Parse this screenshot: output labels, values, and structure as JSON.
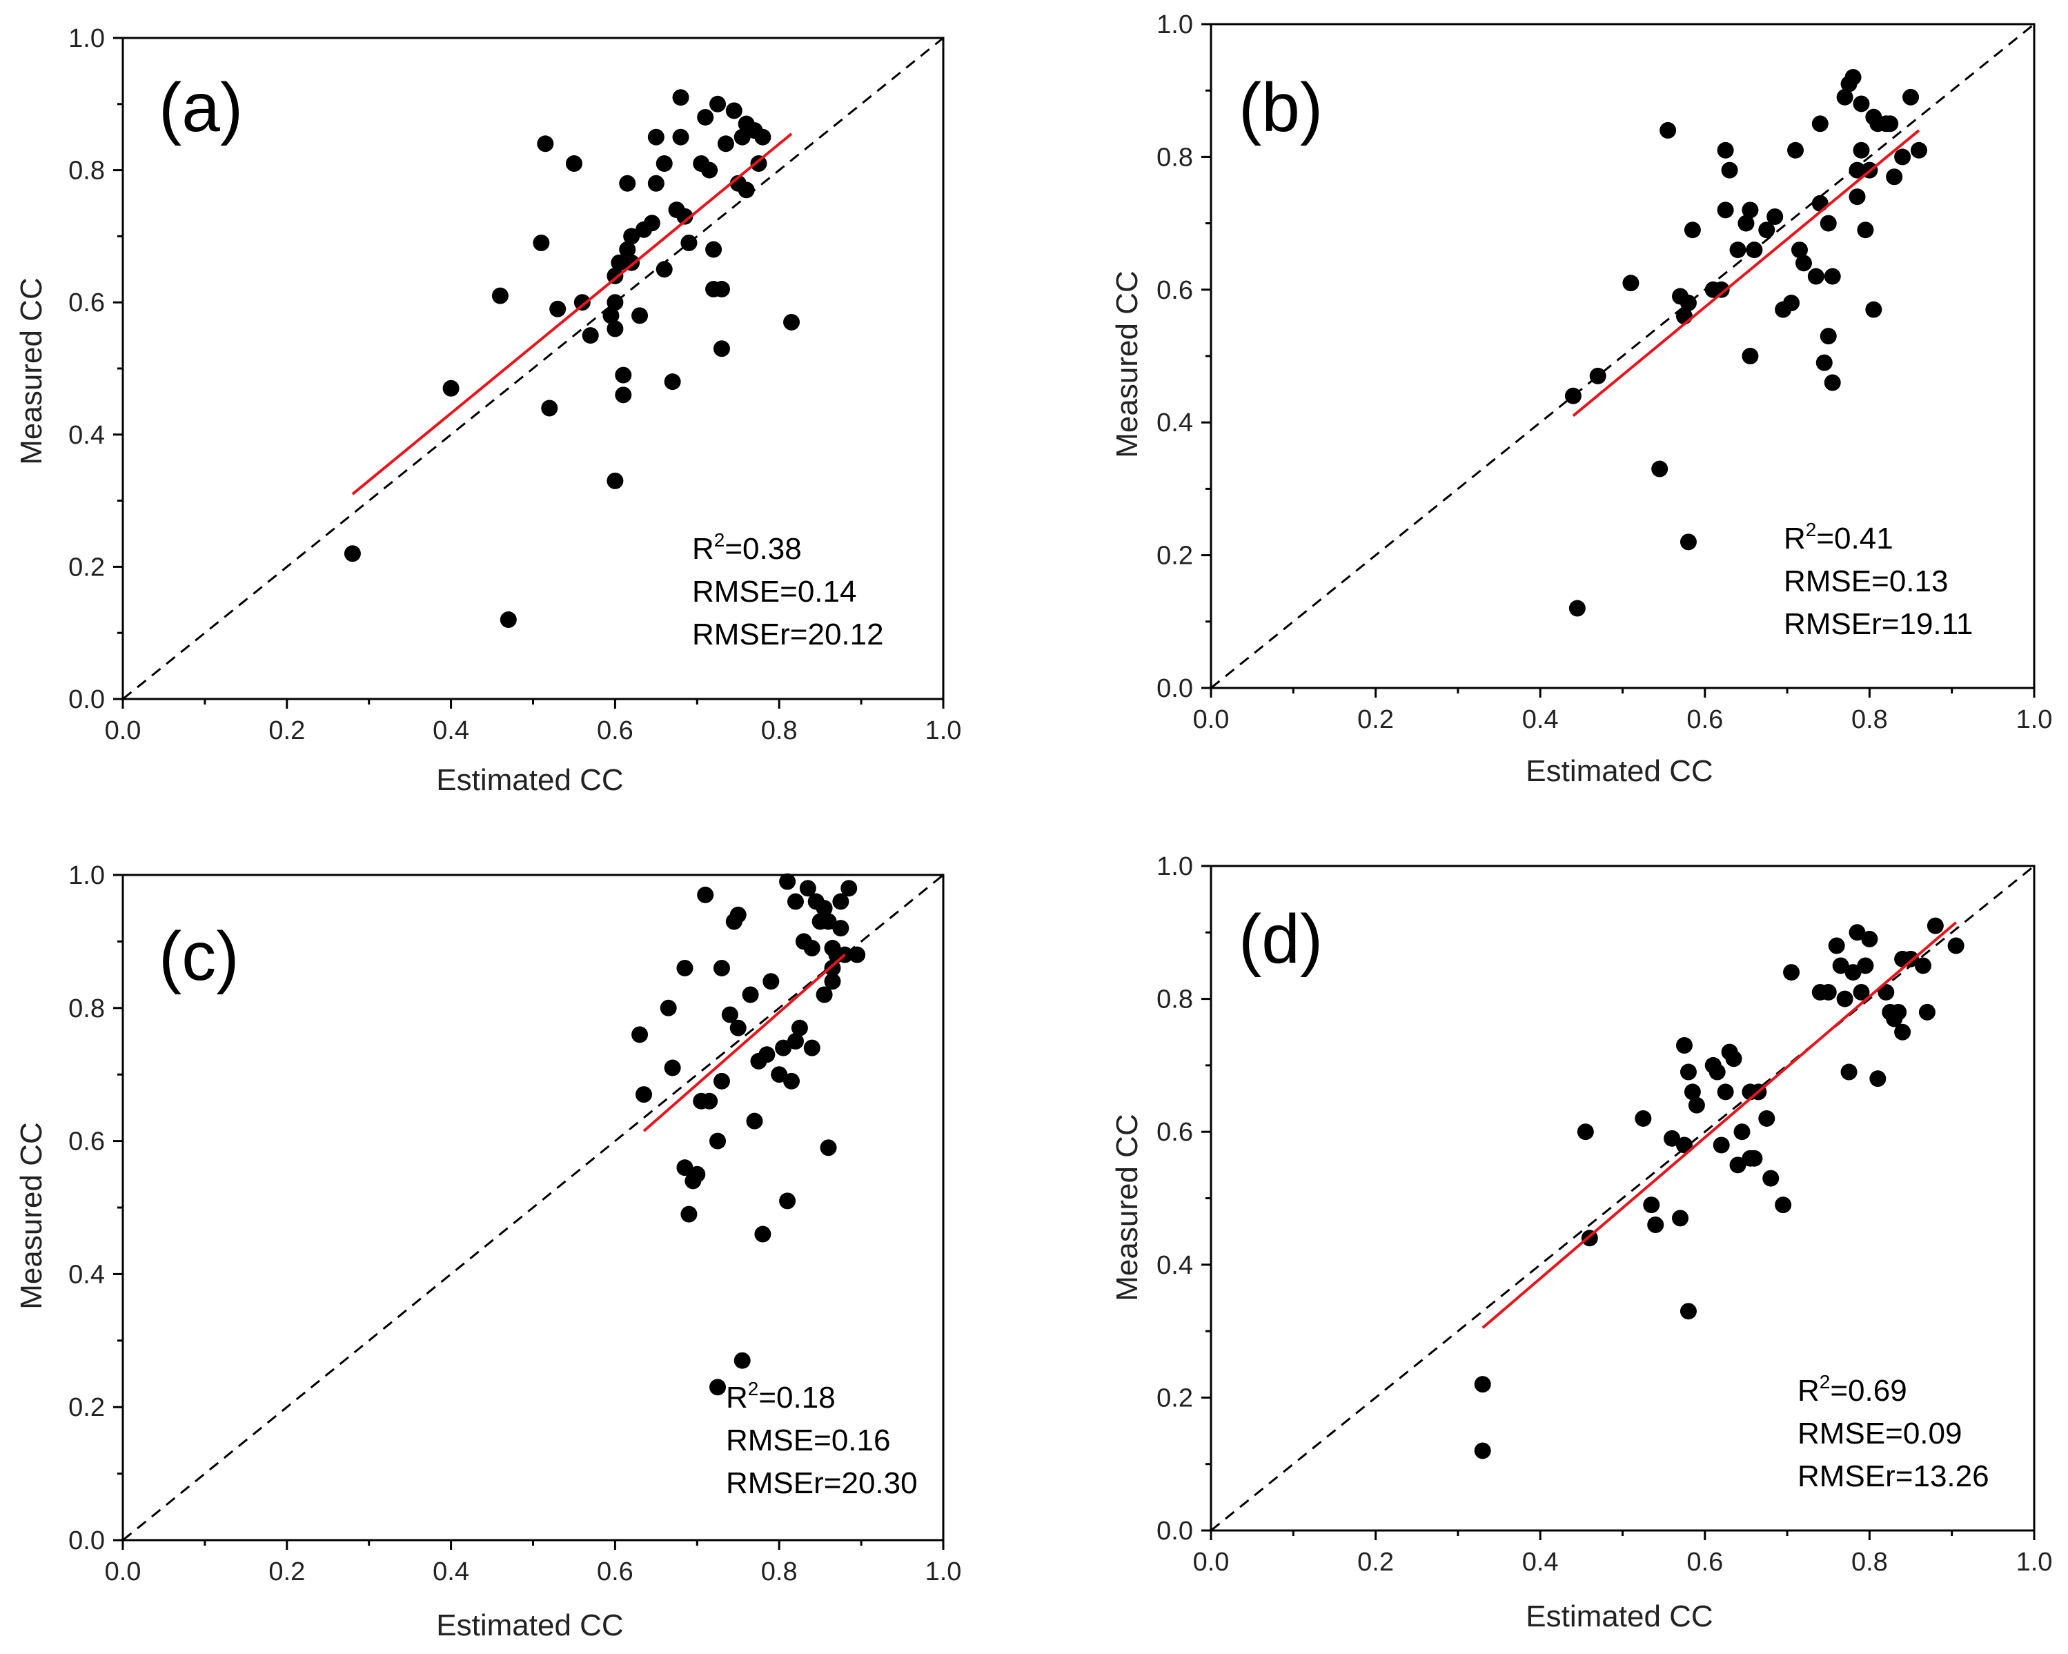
{
  "chart_data": [
    {
      "type": "scatter",
      "panel_label": "(a)",
      "xlabel": "Estimated CC",
      "ylabel": "Measured CC",
      "xlim": [
        0.0,
        1.0
      ],
      "ylim": [
        0.0,
        1.0
      ],
      "xticks": [
        "0.0",
        "0.2",
        "0.4",
        "0.6",
        "0.8",
        "1.0"
      ],
      "yticks": [
        "0.0",
        "0.2",
        "0.4",
        "0.6",
        "0.8",
        "1.0"
      ],
      "one_to_one_line": {
        "x": [
          0.0,
          1.0
        ],
        "y": [
          0.0,
          1.0
        ]
      },
      "fit_line": {
        "x": [
          0.28,
          0.815
        ],
        "y": [
          0.31,
          0.855
        ],
        "color": "#e8141b"
      },
      "stats": {
        "r2_label": "R",
        "r2_sup": "2",
        "r2_value": "=0.38",
        "rmse": "RMSE=0.14",
        "rmser": "RMSEr=20.12"
      },
      "points": [
        [
          0.28,
          0.22
        ],
        [
          0.47,
          0.12
        ],
        [
          0.4,
          0.47
        ],
        [
          0.46,
          0.61
        ],
        [
          0.51,
          0.69
        ],
        [
          0.515,
          0.84
        ],
        [
          0.52,
          0.44
        ],
        [
          0.53,
          0.59
        ],
        [
          0.55,
          0.81
        ],
        [
          0.56,
          0.6
        ],
        [
          0.57,
          0.55
        ],
        [
          0.595,
          0.58
        ],
        [
          0.6,
          0.56
        ],
        [
          0.6,
          0.6
        ],
        [
          0.6,
          0.33
        ],
        [
          0.6,
          0.64
        ],
        [
          0.605,
          0.66
        ],
        [
          0.61,
          0.49
        ],
        [
          0.61,
          0.46
        ],
        [
          0.615,
          0.68
        ],
        [
          0.615,
          0.78
        ],
        [
          0.62,
          0.7
        ],
        [
          0.62,
          0.66
        ],
        [
          0.63,
          0.58
        ],
        [
          0.635,
          0.71
        ],
        [
          0.645,
          0.72
        ],
        [
          0.65,
          0.78
        ],
        [
          0.65,
          0.85
        ],
        [
          0.66,
          0.81
        ],
        [
          0.66,
          0.65
        ],
        [
          0.67,
          0.48
        ],
        [
          0.675,
          0.74
        ],
        [
          0.68,
          0.91
        ],
        [
          0.68,
          0.85
        ],
        [
          0.685,
          0.73
        ],
        [
          0.69,
          0.69
        ],
        [
          0.705,
          0.81
        ],
        [
          0.71,
          0.88
        ],
        [
          0.715,
          0.8
        ],
        [
          0.72,
          0.68
        ],
        [
          0.72,
          0.62
        ],
        [
          0.725,
          0.9
        ],
        [
          0.73,
          0.62
        ],
        [
          0.73,
          0.53
        ],
        [
          0.735,
          0.84
        ],
        [
          0.745,
          0.89
        ],
        [
          0.75,
          0.78
        ],
        [
          0.755,
          0.85
        ],
        [
          0.76,
          0.87
        ],
        [
          0.76,
          0.77
        ],
        [
          0.77,
          0.86
        ],
        [
          0.775,
          0.81
        ],
        [
          0.78,
          0.85
        ],
        [
          0.815,
          0.57
        ]
      ]
    },
    {
      "type": "scatter",
      "panel_label": "(b)",
      "xlabel": "Estimated CC",
      "ylabel": "Measured CC",
      "xlim": [
        0.0,
        1.0
      ],
      "ylim": [
        0.0,
        1.0
      ],
      "xticks": [
        "0.0",
        "0.2",
        "0.4",
        "0.6",
        "0.8",
        "1.0"
      ],
      "yticks": [
        "0.0",
        "0.2",
        "0.4",
        "0.6",
        "0.8",
        "1.0"
      ],
      "one_to_one_line": {
        "x": [
          0.0,
          1.0
        ],
        "y": [
          0.0,
          1.0
        ]
      },
      "fit_line": {
        "x": [
          0.44,
          0.86
        ],
        "y": [
          0.41,
          0.84
        ],
        "color": "#e8141b"
      },
      "stats": {
        "r2_label": "R",
        "r2_sup": "2",
        "r2_value": "=0.41",
        "rmse": "RMSE=0.13",
        "rmser": "RMSEr=19.11"
      },
      "points": [
        [
          0.44,
          0.44
        ],
        [
          0.445,
          0.12
        ],
        [
          0.47,
          0.47
        ],
        [
          0.51,
          0.61
        ],
        [
          0.545,
          0.33
        ],
        [
          0.555,
          0.84
        ],
        [
          0.57,
          0.59
        ],
        [
          0.575,
          0.56
        ],
        [
          0.58,
          0.58
        ],
        [
          0.58,
          0.22
        ],
        [
          0.585,
          0.69
        ],
        [
          0.61,
          0.6
        ],
        [
          0.62,
          0.6
        ],
        [
          0.625,
          0.72
        ],
        [
          0.625,
          0.81
        ],
        [
          0.63,
          0.78
        ],
        [
          0.64,
          0.66
        ],
        [
          0.65,
          0.7
        ],
        [
          0.655,
          0.72
        ],
        [
          0.655,
          0.5
        ],
        [
          0.66,
          0.66
        ],
        [
          0.675,
          0.69
        ],
        [
          0.685,
          0.71
        ],
        [
          0.695,
          0.57
        ],
        [
          0.705,
          0.58
        ],
        [
          0.71,
          0.81
        ],
        [
          0.715,
          0.66
        ],
        [
          0.72,
          0.64
        ],
        [
          0.735,
          0.62
        ],
        [
          0.74,
          0.73
        ],
        [
          0.74,
          0.85
        ],
        [
          0.745,
          0.49
        ],
        [
          0.75,
          0.53
        ],
        [
          0.75,
          0.7
        ],
        [
          0.755,
          0.46
        ],
        [
          0.755,
          0.62
        ],
        [
          0.77,
          0.89
        ],
        [
          0.775,
          0.91
        ],
        [
          0.78,
          0.92
        ],
        [
          0.785,
          0.78
        ],
        [
          0.785,
          0.74
        ],
        [
          0.79,
          0.81
        ],
        [
          0.79,
          0.88
        ],
        [
          0.795,
          0.69
        ],
        [
          0.8,
          0.78
        ],
        [
          0.805,
          0.86
        ],
        [
          0.805,
          0.57
        ],
        [
          0.81,
          0.85
        ],
        [
          0.82,
          0.85
        ],
        [
          0.825,
          0.85
        ],
        [
          0.83,
          0.77
        ],
        [
          0.84,
          0.8
        ],
        [
          0.85,
          0.89
        ],
        [
          0.86,
          0.81
        ]
      ]
    },
    {
      "type": "scatter",
      "panel_label": "(c)",
      "xlabel": "Estimated CC",
      "ylabel": "Measured CC",
      "xlim": [
        0.0,
        1.0
      ],
      "ylim": [
        0.0,
        1.0
      ],
      "xticks": [
        "0.0",
        "0.2",
        "0.4",
        "0.6",
        "0.8",
        "1.0"
      ],
      "yticks": [
        "0.0",
        "0.2",
        "0.4",
        "0.6",
        "0.8",
        "1.0"
      ],
      "one_to_one_line": {
        "x": [
          0.0,
          1.0
        ],
        "y": [
          0.0,
          1.0
        ]
      },
      "fit_line": {
        "x": [
          0.635,
          0.88
        ],
        "y": [
          0.615,
          0.88
        ],
        "color": "#e8141b"
      },
      "stats": {
        "r2_label": "R",
        "r2_sup": "2",
        "r2_value": "=0.18",
        "rmse": "RMSE=0.16",
        "rmser": "RMSEr=20.30"
      },
      "points": [
        [
          0.63,
          0.76
        ],
        [
          0.635,
          0.67
        ],
        [
          0.665,
          0.8
        ],
        [
          0.67,
          0.71
        ],
        [
          0.685,
          0.56
        ],
        [
          0.685,
          0.86
        ],
        [
          0.69,
          0.49
        ],
        [
          0.695,
          0.54
        ],
        [
          0.7,
          0.55
        ],
        [
          0.705,
          0.66
        ],
        [
          0.71,
          0.97
        ],
        [
          0.715,
          0.66
        ],
        [
          0.725,
          0.6
        ],
        [
          0.725,
          0.23
        ],
        [
          0.73,
          0.86
        ],
        [
          0.74,
          0.79
        ],
        [
          0.745,
          0.93
        ],
        [
          0.75,
          0.94
        ],
        [
          0.75,
          0.77
        ],
        [
          0.755,
          0.27
        ],
        [
          0.765,
          0.82
        ],
        [
          0.775,
          0.72
        ],
        [
          0.78,
          0.46
        ],
        [
          0.785,
          0.73
        ],
        [
          0.79,
          0.84
        ],
        [
          0.8,
          0.7
        ],
        [
          0.805,
          0.74
        ],
        [
          0.81,
          0.51
        ],
        [
          0.815,
          0.69
        ],
        [
          0.82,
          0.75
        ],
        [
          0.82,
          0.96
        ],
        [
          0.825,
          0.77
        ],
        [
          0.83,
          0.9
        ],
        [
          0.835,
          0.98
        ],
        [
          0.84,
          0.74
        ],
        [
          0.84,
          0.89
        ],
        [
          0.845,
          0.96
        ],
        [
          0.85,
          0.93
        ],
        [
          0.855,
          0.95
        ],
        [
          0.855,
          0.82
        ],
        [
          0.86,
          0.59
        ],
        [
          0.86,
          0.93
        ],
        [
          0.865,
          0.84
        ],
        [
          0.865,
          0.86
        ],
        [
          0.87,
          0.88
        ],
        [
          0.875,
          0.96
        ],
        [
          0.875,
          0.92
        ],
        [
          0.88,
          0.88
        ],
        [
          0.885,
          0.98
        ],
        [
          0.895,
          0.88
        ],
        [
          0.81,
          0.99
        ],
        [
          0.77,
          0.63
        ],
        [
          0.865,
          0.89
        ],
        [
          0.73,
          0.69
        ]
      ]
    },
    {
      "type": "scatter",
      "panel_label": "(d)",
      "xlabel": "Estimated CC",
      "ylabel": "Measured CC",
      "xlim": [
        0.0,
        1.0
      ],
      "ylim": [
        0.0,
        1.0
      ],
      "xticks": [
        "0.0",
        "0.2",
        "0.4",
        "0.6",
        "0.8",
        "1.0"
      ],
      "yticks": [
        "0.0",
        "0.2",
        "0.4",
        "0.6",
        "0.8",
        "1.0"
      ],
      "one_to_one_line": {
        "x": [
          0.0,
          1.0
        ],
        "y": [
          0.0,
          1.0
        ]
      },
      "fit_line": {
        "x": [
          0.33,
          0.905
        ],
        "y": [
          0.305,
          0.915
        ],
        "color": "#e8141b"
      },
      "stats": {
        "r2_label": "R",
        "r2_sup": "2",
        "r2_value": "=0.69",
        "rmse": "RMSE=0.09",
        "rmser": "RMSEr=13.26"
      },
      "points": [
        [
          0.33,
          0.22
        ],
        [
          0.33,
          0.12
        ],
        [
          0.455,
          0.6
        ],
        [
          0.46,
          0.44
        ],
        [
          0.525,
          0.62
        ],
        [
          0.535,
          0.49
        ],
        [
          0.54,
          0.46
        ],
        [
          0.56,
          0.59
        ],
        [
          0.57,
          0.47
        ],
        [
          0.575,
          0.73
        ],
        [
          0.575,
          0.58
        ],
        [
          0.58,
          0.69
        ],
        [
          0.58,
          0.33
        ],
        [
          0.585,
          0.66
        ],
        [
          0.59,
          0.64
        ],
        [
          0.61,
          0.7
        ],
        [
          0.615,
          0.69
        ],
        [
          0.62,
          0.58
        ],
        [
          0.625,
          0.66
        ],
        [
          0.63,
          0.72
        ],
        [
          0.635,
          0.71
        ],
        [
          0.64,
          0.55
        ],
        [
          0.645,
          0.6
        ],
        [
          0.655,
          0.56
        ],
        [
          0.655,
          0.66
        ],
        [
          0.66,
          0.56
        ],
        [
          0.665,
          0.66
        ],
        [
          0.675,
          0.62
        ],
        [
          0.68,
          0.53
        ],
        [
          0.695,
          0.49
        ],
        [
          0.705,
          0.84
        ],
        [
          0.74,
          0.81
        ],
        [
          0.75,
          0.81
        ],
        [
          0.76,
          0.88
        ],
        [
          0.765,
          0.85
        ],
        [
          0.77,
          0.8
        ],
        [
          0.775,
          0.69
        ],
        [
          0.78,
          0.84
        ],
        [
          0.785,
          0.9
        ],
        [
          0.79,
          0.81
        ],
        [
          0.795,
          0.85
        ],
        [
          0.8,
          0.89
        ],
        [
          0.81,
          0.68
        ],
        [
          0.82,
          0.81
        ],
        [
          0.825,
          0.78
        ],
        [
          0.83,
          0.77
        ],
        [
          0.835,
          0.78
        ],
        [
          0.84,
          0.86
        ],
        [
          0.84,
          0.75
        ],
        [
          0.85,
          0.86
        ],
        [
          0.87,
          0.78
        ],
        [
          0.88,
          0.91
        ],
        [
          0.905,
          0.88
        ],
        [
          0.865,
          0.85
        ]
      ]
    }
  ]
}
